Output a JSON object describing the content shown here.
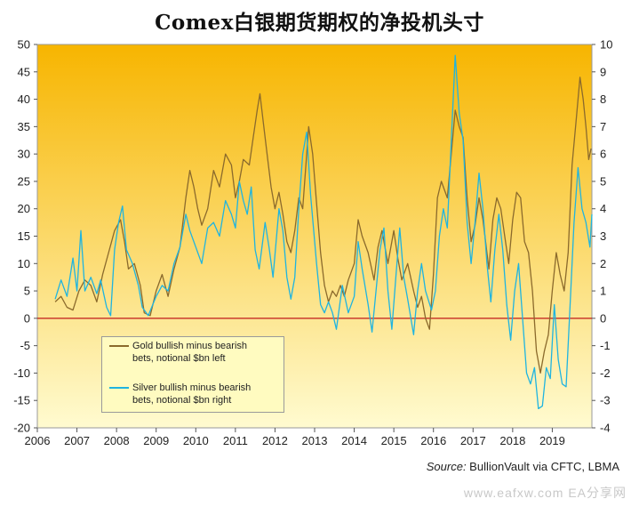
{
  "title": "Comex白银期货期权的净投机头寸",
  "source_label": "Source:",
  "source_text": " BullionVault via CFTC, LBMA",
  "watermark": "www.eafxw.com  EA分享网",
  "colors": {
    "background_top": "#f7b500",
    "background_bottom": "#fffbd0",
    "gold_series": "#8b6a2c",
    "silver_series": "#1fb4e0",
    "zero_line": "#c01818"
  },
  "chart_data": {
    "type": "line",
    "title": "Comex白银期货期权的净投机头寸",
    "x_range": [
      2006,
      2020
    ],
    "x_ticks": [
      "2006",
      "2007",
      "2008",
      "2009",
      "2010",
      "2011",
      "2012",
      "2013",
      "2014",
      "2015",
      "2016",
      "2017",
      "2018",
      "2019"
    ],
    "y_left": {
      "range": [
        -20,
        50
      ],
      "ticks": [
        "-20",
        "-15",
        "-10",
        "-5",
        "0",
        "5",
        "10",
        "15",
        "20",
        "25",
        "30",
        "35",
        "40",
        "45",
        "50"
      ]
    },
    "y_right": {
      "range": [
        -4,
        10
      ],
      "ticks": [
        "-4",
        "-3",
        "-2",
        "-1",
        "0",
        "1",
        "2",
        "3",
        "4",
        "5",
        "6",
        "7",
        "8",
        "9",
        "10"
      ]
    },
    "grid": false,
    "legend_position": "bottom-left",
    "series": [
      {
        "name": "Gold bullish minus bearish bets, notional $bn left",
        "axis": "left",
        "points": [
          [
            2006.45,
            3
          ],
          [
            2006.6,
            4
          ],
          [
            2006.75,
            2
          ],
          [
            2006.9,
            1.5
          ],
          [
            2007.05,
            5
          ],
          [
            2007.2,
            7
          ],
          [
            2007.35,
            6
          ],
          [
            2007.5,
            3
          ],
          [
            2007.65,
            8
          ],
          [
            2007.8,
            12
          ],
          [
            2007.95,
            16
          ],
          [
            2008.1,
            18
          ],
          [
            2008.2,
            14
          ],
          [
            2008.3,
            9
          ],
          [
            2008.45,
            10
          ],
          [
            2008.6,
            6
          ],
          [
            2008.7,
            1
          ],
          [
            2008.85,
            0.5
          ],
          [
            2009.0,
            5
          ],
          [
            2009.15,
            8
          ],
          [
            2009.3,
            4
          ],
          [
            2009.45,
            9
          ],
          [
            2009.6,
            13
          ],
          [
            2009.75,
            22
          ],
          [
            2009.85,
            27
          ],
          [
            2009.95,
            24
          ],
          [
            2010.05,
            20
          ],
          [
            2010.15,
            17
          ],
          [
            2010.3,
            20
          ],
          [
            2010.45,
            27
          ],
          [
            2010.6,
            24
          ],
          [
            2010.75,
            30
          ],
          [
            2010.9,
            28
          ],
          [
            2011.0,
            22
          ],
          [
            2011.1,
            25
          ],
          [
            2011.2,
            29
          ],
          [
            2011.35,
            28
          ],
          [
            2011.45,
            33
          ],
          [
            2011.55,
            38
          ],
          [
            2011.62,
            41
          ],
          [
            2011.7,
            36
          ],
          [
            2011.8,
            30
          ],
          [
            2011.9,
            24
          ],
          [
            2012.0,
            20
          ],
          [
            2012.1,
            23
          ],
          [
            2012.2,
            19
          ],
          [
            2012.3,
            14
          ],
          [
            2012.4,
            12
          ],
          [
            2012.5,
            16
          ],
          [
            2012.6,
            22
          ],
          [
            2012.7,
            20
          ],
          [
            2012.78,
            28
          ],
          [
            2012.85,
            35
          ],
          [
            2012.95,
            30
          ],
          [
            2013.05,
            21
          ],
          [
            2013.15,
            12
          ],
          [
            2013.25,
            6
          ],
          [
            2013.35,
            3
          ],
          [
            2013.45,
            5
          ],
          [
            2013.55,
            4
          ],
          [
            2013.65,
            6
          ],
          [
            2013.75,
            4
          ],
          [
            2013.85,
            7
          ],
          [
            2014.0,
            10
          ],
          [
            2014.1,
            18
          ],
          [
            2014.2,
            15
          ],
          [
            2014.35,
            12
          ],
          [
            2014.5,
            7
          ],
          [
            2014.6,
            13
          ],
          [
            2014.7,
            16
          ],
          [
            2014.85,
            10
          ],
          [
            2015.0,
            16
          ],
          [
            2015.1,
            11
          ],
          [
            2015.2,
            7
          ],
          [
            2015.35,
            10
          ],
          [
            2015.5,
            5
          ],
          [
            2015.6,
            2
          ],
          [
            2015.7,
            4
          ],
          [
            2015.8,
            0
          ],
          [
            2015.9,
            -2
          ],
          [
            2016.0,
            8
          ],
          [
            2016.1,
            22
          ],
          [
            2016.2,
            25
          ],
          [
            2016.35,
            22
          ],
          [
            2016.45,
            30
          ],
          [
            2016.55,
            38
          ],
          [
            2016.65,
            35
          ],
          [
            2016.75,
            33
          ],
          [
            2016.85,
            22
          ],
          [
            2016.95,
            14
          ],
          [
            2017.05,
            17
          ],
          [
            2017.15,
            22
          ],
          [
            2017.25,
            18
          ],
          [
            2017.4,
            9
          ],
          [
            2017.5,
            18
          ],
          [
            2017.6,
            22
          ],
          [
            2017.7,
            20
          ],
          [
            2017.8,
            15
          ],
          [
            2017.9,
            10
          ],
          [
            2018.0,
            18
          ],
          [
            2018.1,
            23
          ],
          [
            2018.2,
            22
          ],
          [
            2018.3,
            14
          ],
          [
            2018.4,
            12
          ],
          [
            2018.5,
            5
          ],
          [
            2018.6,
            -6
          ],
          [
            2018.7,
            -10
          ],
          [
            2018.8,
            -6
          ],
          [
            2018.9,
            -3
          ],
          [
            2019.0,
            5
          ],
          [
            2019.1,
            12
          ],
          [
            2019.2,
            8
          ],
          [
            2019.3,
            5
          ],
          [
            2019.4,
            12
          ],
          [
            2019.5,
            28
          ],
          [
            2019.6,
            36
          ],
          [
            2019.7,
            44
          ],
          [
            2019.78,
            40
          ],
          [
            2019.85,
            35
          ],
          [
            2019.92,
            29
          ],
          [
            2019.98,
            31
          ]
        ]
      },
      {
        "name": "Silver bullish minus bearish bets, notional $bn right",
        "axis": "right",
        "points": [
          [
            2006.45,
            0.7
          ],
          [
            2006.6,
            1.4
          ],
          [
            2006.75,
            0.8
          ],
          [
            2006.9,
            2.2
          ],
          [
            2007.0,
            1.0
          ],
          [
            2007.1,
            3.2
          ],
          [
            2007.2,
            1.0
          ],
          [
            2007.35,
            1.5
          ],
          [
            2007.5,
            0.9
          ],
          [
            2007.6,
            1.4
          ],
          [
            2007.75,
            0.4
          ],
          [
            2007.85,
            0.1
          ],
          [
            2007.95,
            2.5
          ],
          [
            2008.05,
            3.5
          ],
          [
            2008.15,
            4.1
          ],
          [
            2008.25,
            2.5
          ],
          [
            2008.4,
            2.0
          ],
          [
            2008.55,
            1.2
          ],
          [
            2008.65,
            0.4
          ],
          [
            2008.8,
            0.1
          ],
          [
            2009.0,
            0.8
          ],
          [
            2009.15,
            1.2
          ],
          [
            2009.3,
            1.0
          ],
          [
            2009.45,
            2.0
          ],
          [
            2009.6,
            2.6
          ],
          [
            2009.75,
            3.8
          ],
          [
            2009.85,
            3.2
          ],
          [
            2010.0,
            2.6
          ],
          [
            2010.15,
            2.0
          ],
          [
            2010.3,
            3.3
          ],
          [
            2010.45,
            3.5
          ],
          [
            2010.6,
            3.0
          ],
          [
            2010.75,
            4.3
          ],
          [
            2010.9,
            3.8
          ],
          [
            2011.0,
            3.3
          ],
          [
            2011.1,
            5.0
          ],
          [
            2011.2,
            4.3
          ],
          [
            2011.3,
            3.8
          ],
          [
            2011.4,
            4.8
          ],
          [
            2011.5,
            2.5
          ],
          [
            2011.6,
            1.8
          ],
          [
            2011.75,
            3.5
          ],
          [
            2011.85,
            2.6
          ],
          [
            2011.95,
            1.5
          ],
          [
            2012.1,
            4.0
          ],
          [
            2012.2,
            3.2
          ],
          [
            2012.3,
            1.5
          ],
          [
            2012.4,
            0.7
          ],
          [
            2012.5,
            1.5
          ],
          [
            2012.6,
            4.0
          ],
          [
            2012.7,
            6.0
          ],
          [
            2012.8,
            6.8
          ],
          [
            2012.9,
            4.5
          ],
          [
            2013.05,
            2.0
          ],
          [
            2013.15,
            0.5
          ],
          [
            2013.25,
            0.2
          ],
          [
            2013.35,
            0.6
          ],
          [
            2013.45,
            0.2
          ],
          [
            2013.55,
            -0.4
          ],
          [
            2013.7,
            1.2
          ],
          [
            2013.85,
            0.2
          ],
          [
            2014.0,
            0.8
          ],
          [
            2014.1,
            2.8
          ],
          [
            2014.2,
            1.8
          ],
          [
            2014.35,
            0.5
          ],
          [
            2014.45,
            -0.5
          ],
          [
            2014.55,
            1.0
          ],
          [
            2014.65,
            2.5
          ],
          [
            2014.75,
            3.3
          ],
          [
            2014.85,
            1.0
          ],
          [
            2014.95,
            -0.4
          ],
          [
            2015.05,
            1.5
          ],
          [
            2015.15,
            3.3
          ],
          [
            2015.25,
            1.5
          ],
          [
            2015.35,
            0.7
          ],
          [
            2015.5,
            -0.6
          ],
          [
            2015.6,
            1.0
          ],
          [
            2015.7,
            2.0
          ],
          [
            2015.8,
            1.0
          ],
          [
            2015.95,
            0.3
          ],
          [
            2016.05,
            1.0
          ],
          [
            2016.15,
            3.0
          ],
          [
            2016.25,
            4.0
          ],
          [
            2016.35,
            3.3
          ],
          [
            2016.45,
            6.5
          ],
          [
            2016.55,
            9.6
          ],
          [
            2016.65,
            7.5
          ],
          [
            2016.75,
            6.5
          ],
          [
            2016.85,
            3.5
          ],
          [
            2016.95,
            2.0
          ],
          [
            2017.05,
            3.5
          ],
          [
            2017.15,
            5.3
          ],
          [
            2017.25,
            4.0
          ],
          [
            2017.35,
            2.0
          ],
          [
            2017.45,
            0.6
          ],
          [
            2017.55,
            2.5
          ],
          [
            2017.65,
            3.8
          ],
          [
            2017.75,
            2.5
          ],
          [
            2017.85,
            0.5
          ],
          [
            2017.95,
            -0.8
          ],
          [
            2018.05,
            1.0
          ],
          [
            2018.15,
            2.0
          ],
          [
            2018.25,
            0.0
          ],
          [
            2018.35,
            -2.0
          ],
          [
            2018.45,
            -2.4
          ],
          [
            2018.55,
            -1.8
          ],
          [
            2018.65,
            -3.3
          ],
          [
            2018.75,
            -3.2
          ],
          [
            2018.85,
            -1.8
          ],
          [
            2018.95,
            -2.2
          ],
          [
            2019.05,
            0.5
          ],
          [
            2019.15,
            -1.5
          ],
          [
            2019.25,
            -2.4
          ],
          [
            2019.35,
            -2.5
          ],
          [
            2019.45,
            0.5
          ],
          [
            2019.55,
            3.5
          ],
          [
            2019.65,
            5.5
          ],
          [
            2019.75,
            4.0
          ],
          [
            2019.85,
            3.5
          ],
          [
            2019.95,
            2.6
          ],
          [
            2020.0,
            3.8
          ]
        ]
      }
    ]
  },
  "legend": {
    "gold_line1": "Gold bullish minus bearish",
    "gold_line2": "bets, notional $bn left",
    "silver_line1": "Silver bullish minus bearish",
    "silver_line2": "bets, notional $bn right"
  }
}
